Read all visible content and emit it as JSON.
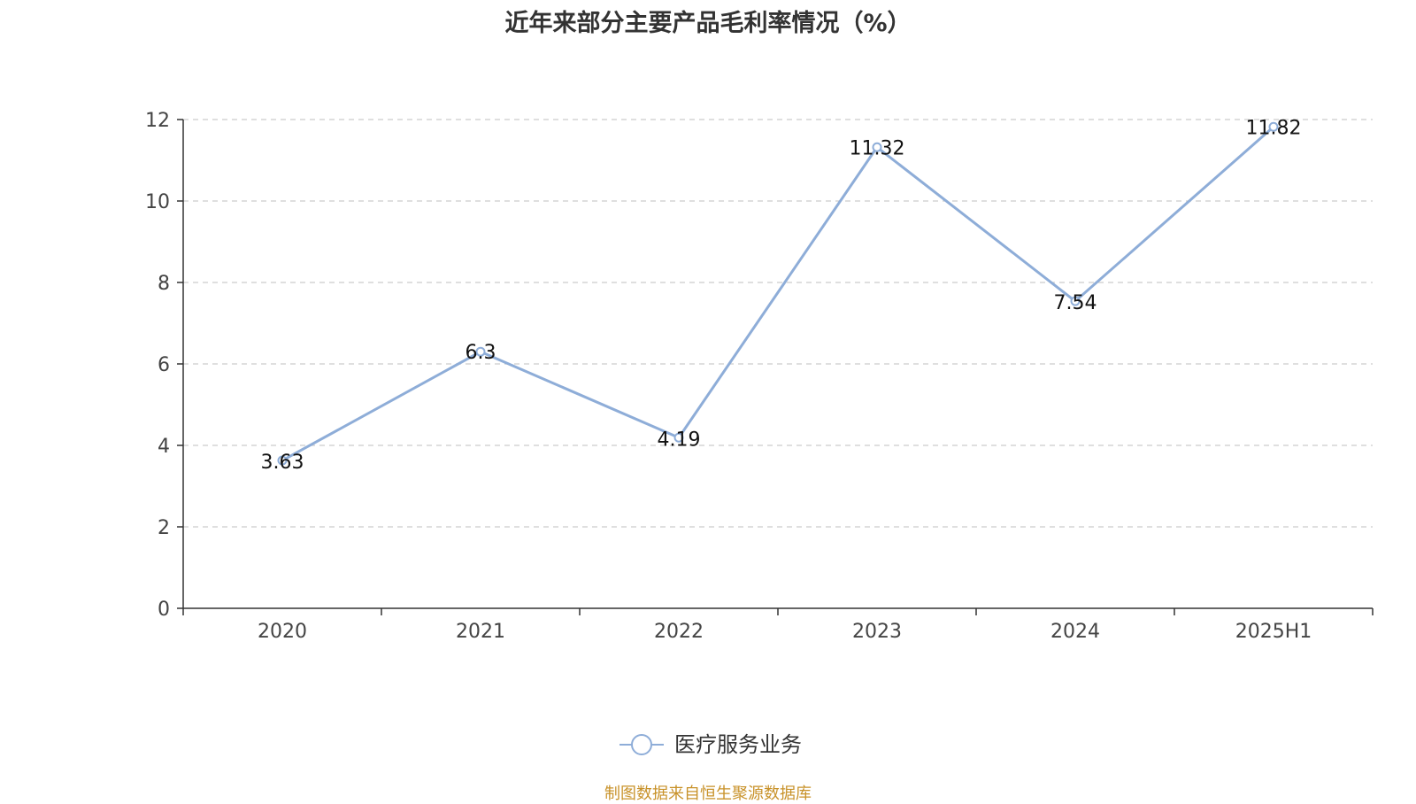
{
  "chart_data": {
    "type": "line",
    "title": "近年来部分主要产品毛利率情况（%）",
    "categories": [
      "2020",
      "2021",
      "2022",
      "2023",
      "2024",
      "2025H1"
    ],
    "series": [
      {
        "name": "医疗服务业务",
        "values": [
          3.63,
          6.3,
          4.19,
          11.32,
          7.54,
          11.82
        ],
        "labels": [
          "3.63",
          "6.3",
          "4.19",
          "11.32",
          "7.54",
          "11.82"
        ]
      }
    ],
    "ylim": [
      0,
      12
    ],
    "yticks": [
      0,
      2,
      4,
      6,
      8,
      10,
      12
    ],
    "xlabel": "",
    "ylabel": "",
    "grid": true,
    "legend_position": "bottom",
    "colors": {
      "series": "#8eadd8",
      "grid": "#cccccc",
      "axis": "#333333",
      "source": "#c8922a"
    }
  },
  "source_note": "制图数据来自恒生聚源数据库"
}
